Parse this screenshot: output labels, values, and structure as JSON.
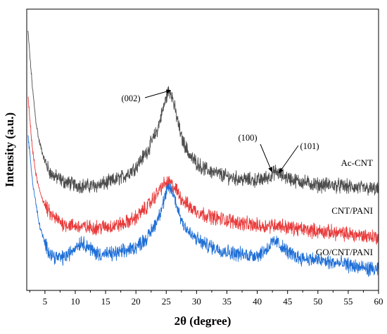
{
  "chart_data": {
    "type": "line",
    "xlabel": "2θ (degree)",
    "ylabel": "Intensity (a.u.)",
    "xlim": [
      2,
      60
    ],
    "x_ticks": [
      5,
      10,
      15,
      20,
      25,
      30,
      35,
      40,
      45,
      50,
      55,
      60
    ],
    "y_ticks_shown": false,
    "grid": false,
    "series": [
      {
        "name": "Ac-CNT",
        "color": "#4d4d4d",
        "noise": 2.4,
        "points": [
          [
            2.2,
            95
          ],
          [
            2.6,
            82
          ],
          [
            3,
            70
          ],
          [
            3.5,
            58
          ],
          [
            4,
            50
          ],
          [
            5,
            41
          ],
          [
            6,
            36
          ],
          [
            8,
            33
          ],
          [
            10,
            31.5
          ],
          [
            12,
            31
          ],
          [
            14,
            31.5
          ],
          [
            16,
            33
          ],
          [
            18,
            35
          ],
          [
            20,
            39
          ],
          [
            22,
            46
          ],
          [
            23.5,
            54
          ],
          [
            24.5,
            63
          ],
          [
            25.3,
            70
          ],
          [
            25.8,
            70
          ],
          [
            26.5,
            62
          ],
          [
            27.5,
            51
          ],
          [
            29,
            43
          ],
          [
            31,
            38.5
          ],
          [
            33,
            36.5
          ],
          [
            35,
            35
          ],
          [
            37,
            34
          ],
          [
            39,
            33.5
          ],
          [
            40.5,
            33.5
          ],
          [
            42,
            35
          ],
          [
            43,
            37
          ],
          [
            44,
            35.5
          ],
          [
            46,
            33.5
          ],
          [
            48,
            32.5
          ],
          [
            50,
            31.5
          ],
          [
            52,
            31.5
          ],
          [
            54,
            31
          ],
          [
            56,
            30.5
          ],
          [
            58,
            30
          ],
          [
            60,
            29.5
          ]
        ]
      },
      {
        "name": "CNT/PANI",
        "color": "#e83a3a",
        "noise": 2.4,
        "points": [
          [
            2.2,
            68
          ],
          [
            2.6,
            56
          ],
          [
            3,
            45
          ],
          [
            3.5,
            36
          ],
          [
            4,
            30
          ],
          [
            5,
            23
          ],
          [
            6,
            19
          ],
          [
            8,
            15.5
          ],
          [
            10,
            14.5
          ],
          [
            12,
            14
          ],
          [
            14,
            14
          ],
          [
            16,
            14.5
          ],
          [
            18,
            15.5
          ],
          [
            20,
            18
          ],
          [
            22,
            23
          ],
          [
            23.5,
            28
          ],
          [
            24.5,
            31.5
          ],
          [
            25.5,
            32.5
          ],
          [
            26.5,
            30
          ],
          [
            27.5,
            26
          ],
          [
            29,
            22
          ],
          [
            31,
            19.5
          ],
          [
            33,
            18
          ],
          [
            35,
            17
          ],
          [
            37,
            16
          ],
          [
            39,
            15
          ],
          [
            41,
            14.5
          ],
          [
            42.5,
            15
          ],
          [
            43.5,
            15
          ],
          [
            45,
            14
          ],
          [
            48,
            13
          ],
          [
            50,
            12.5
          ],
          [
            52,
            12
          ],
          [
            54,
            11.5
          ],
          [
            56,
            11
          ],
          [
            58,
            10.5
          ],
          [
            60,
            10
          ]
        ]
      },
      {
        "name": "GO/CNT/PANI",
        "color": "#1f6fd6",
        "noise": 2.4,
        "points": [
          [
            2.2,
            52
          ],
          [
            2.6,
            42
          ],
          [
            3,
            32
          ],
          [
            3.5,
            24
          ],
          [
            4,
            16
          ],
          [
            5,
            7
          ],
          [
            6,
            3
          ],
          [
            7,
            1.5
          ],
          [
            8,
            1.5
          ],
          [
            9,
            3
          ],
          [
            10,
            6
          ],
          [
            11,
            8
          ],
          [
            12,
            6.5
          ],
          [
            13,
            4
          ],
          [
            14,
            3
          ],
          [
            16,
            3
          ],
          [
            18,
            4
          ],
          [
            20,
            6
          ],
          [
            22,
            10
          ],
          [
            23.5,
            17
          ],
          [
            24.5,
            24
          ],
          [
            25.3,
            30
          ],
          [
            25.8,
            30
          ],
          [
            26.5,
            25
          ],
          [
            27.5,
            17
          ],
          [
            29,
            11
          ],
          [
            31,
            7.5
          ],
          [
            33,
            5.5
          ],
          [
            35,
            4
          ],
          [
            37,
            3
          ],
          [
            39,
            2.5
          ],
          [
            40.5,
            3
          ],
          [
            41.5,
            5
          ],
          [
            42.5,
            7.5
          ],
          [
            43.2,
            8
          ],
          [
            44,
            6
          ],
          [
            45.5,
            3
          ],
          [
            47,
            1.5
          ],
          [
            50,
            0.5
          ],
          [
            52,
            -0.5
          ],
          [
            54,
            -1
          ],
          [
            56,
            -2
          ],
          [
            58,
            -3
          ],
          [
            60,
            -3.5
          ]
        ]
      }
    ],
    "annotations": [
      {
        "text": "(002)",
        "arrow_to": [
          25.7,
          70.5
        ]
      },
      {
        "text": "(100)",
        "arrow_to": [
          42.4,
          37
        ]
      },
      {
        "text": "(101)",
        "arrow_to": [
          43.6,
          36.5
        ]
      }
    ]
  }
}
